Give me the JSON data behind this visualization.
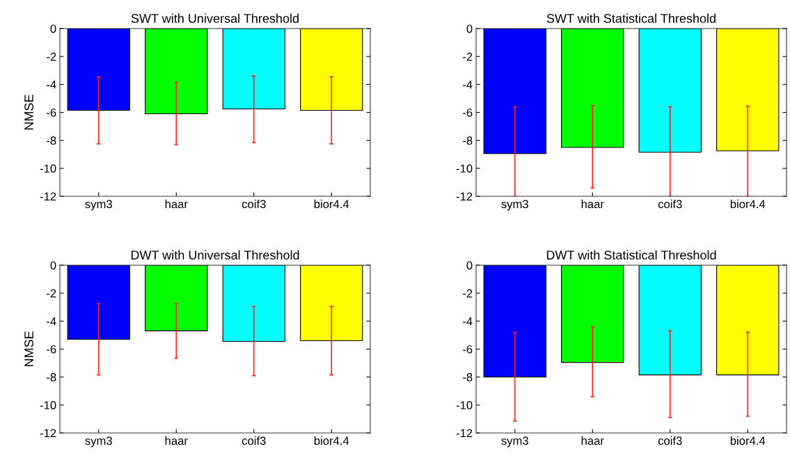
{
  "chart_data": [
    {
      "type": "bar",
      "title": "SWT with Universal Threshold",
      "ylabel": "NMSE",
      "categories": [
        "sym3",
        "haar",
        "coif3",
        "bior4.4"
      ],
      "values": [
        -5.85,
        -6.1,
        -5.75,
        -5.85
      ],
      "colors": [
        "#0000ff",
        "#00ff00",
        "#00ffff",
        "#ffff00"
      ],
      "errors": [
        [
          -8.25,
          -3.45
        ],
        [
          -8.3,
          -3.85
        ],
        [
          -8.15,
          -3.4
        ],
        [
          -8.25,
          -3.45
        ]
      ],
      "ylim": [
        -12,
        0
      ],
      "yticks": [
        -12,
        -10,
        -8,
        -6,
        -4,
        -2,
        0
      ],
      "grid": false,
      "legend": false
    },
    {
      "type": "bar",
      "title": "SWT with Statistical Threshold",
      "categories": [
        "sym3",
        "haar",
        "coif3",
        "bior4.4"
      ],
      "values": [
        -8.95,
        -8.5,
        -8.85,
        -8.75
      ],
      "colors": [
        "#0000ff",
        "#00ff00",
        "#00ffff",
        "#ffff00"
      ],
      "errors": [
        [
          -12,
          -5.6
        ],
        [
          -11.4,
          -5.5
        ],
        [
          -12,
          -5.6
        ],
        [
          -12,
          -5.55
        ]
      ],
      "ylim": [
        -12,
        0
      ],
      "yticks": [
        -12,
        -10,
        -8,
        -6,
        -4,
        -2,
        0
      ],
      "grid": false,
      "legend": false
    },
    {
      "type": "bar",
      "title": "DWT with Universal Threshold",
      "ylabel": "NMSE",
      "categories": [
        "sym3",
        "haar",
        "coif3",
        "bior4.4"
      ],
      "values": [
        -5.3,
        -4.7,
        -5.45,
        -5.4
      ],
      "colors": [
        "#0000ff",
        "#00ff00",
        "#00ffff",
        "#ffff00"
      ],
      "errors": [
        [
          -7.85,
          -2.75
        ],
        [
          -6.65,
          -2.75
        ],
        [
          -7.9,
          -2.95
        ],
        [
          -7.85,
          -2.95
        ]
      ],
      "ylim": [
        -12,
        0
      ],
      "yticks": [
        -12,
        -10,
        -8,
        -6,
        -4,
        -2,
        0
      ],
      "grid": false,
      "legend": false
    },
    {
      "type": "bar",
      "title": "DWT with Statistical Threshold",
      "categories": [
        "sym3",
        "haar",
        "coif3",
        "bior4.4"
      ],
      "values": [
        -8.0,
        -6.95,
        -7.85,
        -7.85
      ],
      "colors": [
        "#0000ff",
        "#00ff00",
        "#00ffff",
        "#ffff00"
      ],
      "errors": [
        [
          -11.15,
          -4.8
        ],
        [
          -9.4,
          -4.4
        ],
        [
          -10.9,
          -4.7
        ],
        [
          -10.8,
          -4.8
        ]
      ],
      "ylim": [
        -12,
        0
      ],
      "yticks": [
        -12,
        -10,
        -8,
        -6,
        -4,
        -2,
        0
      ],
      "grid": false,
      "legend": false
    }
  ]
}
